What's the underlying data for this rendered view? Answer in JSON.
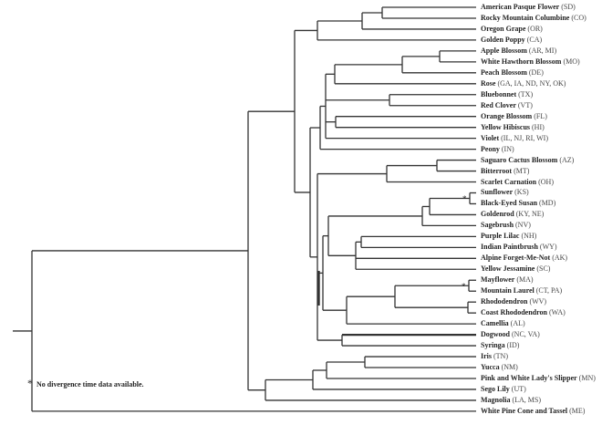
{
  "leaves": [
    {
      "name": "American Pasque Flower",
      "states": "(SD)"
    },
    {
      "name": "Rocky Mountain Columbine",
      "states": "(CO)"
    },
    {
      "name": "Oregon Grape",
      "states": "(OR)"
    },
    {
      "name": "Golden Poppy",
      "states": "(CA)"
    },
    {
      "name": "Apple Blossom",
      "states": "(AR, MI)"
    },
    {
      "name": "White Hawthorn Blossom",
      "states": "(MO)"
    },
    {
      "name": "Peach Blossom",
      "states": "(DE)"
    },
    {
      "name": "Rose",
      "states": "(GA, IA, ND, NY, OK)"
    },
    {
      "name": "Bluebonnet",
      "states": "(TX)"
    },
    {
      "name": "Red Clover",
      "states": "(VT)"
    },
    {
      "name": "Orange Blossom",
      "states": "(FL)"
    },
    {
      "name": "Yellow Hibiscus",
      "states": "(HI)"
    },
    {
      "name": "Violet",
      "states": "(IL, NJ, RI, WI)"
    },
    {
      "name": "Peony",
      "states": "(IN)"
    },
    {
      "name": "Saguaro Cactus Blossom",
      "states": "(AZ)"
    },
    {
      "name": "Bitterroot",
      "states": "(MT)"
    },
    {
      "name": "Scarlet Carnation",
      "states": "(OH)"
    },
    {
      "name": "Sunflower",
      "states": "(KS)"
    },
    {
      "name": "Black-Eyed Susan",
      "states": "(MD)"
    },
    {
      "name": "Goldenrod",
      "states": "(KY, NE)"
    },
    {
      "name": "Sagebrush",
      "states": "(NV)"
    },
    {
      "name": "Purple Lilac",
      "states": "(NH)"
    },
    {
      "name": "Indian Paintbrush",
      "states": "(WY)"
    },
    {
      "name": "Alpine Forget-Me-Not",
      "states": "(AK)"
    },
    {
      "name": "Yellow Jessamine",
      "states": "(SC)"
    },
    {
      "name": "Mayflower",
      "states": "(MA)"
    },
    {
      "name": "Mountain Laurel",
      "states": "(CT, PA)"
    },
    {
      "name": "Rhododendron",
      "states": "(WV)"
    },
    {
      "name": "Coast Rhododendron",
      "states": "(WA)"
    },
    {
      "name": "Camellia",
      "states": "(AL)"
    },
    {
      "name": "Dogwood",
      "states": "(NC, VA)"
    },
    {
      "name": "Syringa",
      "states": "(ID)"
    },
    {
      "name": "Iris",
      "states": "(TN)"
    },
    {
      "name": "Yucca",
      "states": "(NM)"
    },
    {
      "name": "Pink and White Lady's Slipper",
      "states": "(MN)"
    },
    {
      "name": "Sego Lily",
      "states": "(UT)"
    },
    {
      "name": "Magnolia",
      "states": "(LA, MS)"
    },
    {
      "name": "White Pine Cone and Tassel",
      "states": "(ME)"
    }
  ],
  "star_marker": "*",
  "footnote": {
    "marker": "*",
    "text": "No divergence time data available."
  },
  "line_color": "#333333"
}
